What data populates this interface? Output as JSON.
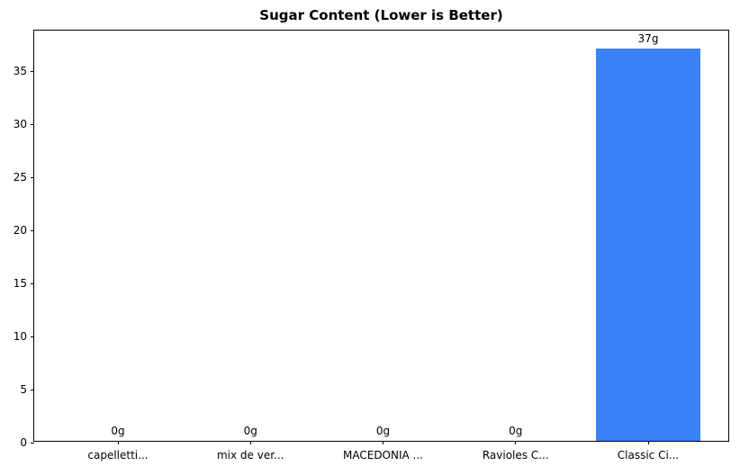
{
  "chart_data": {
    "type": "bar",
    "title": "Sugar Content (Lower is Better)",
    "categories": [
      "capelletti...",
      "mix de ver...",
      "MACEDONIA ...",
      "Ravioles C...",
      "Classic Ci..."
    ],
    "values": [
      0,
      0,
      0,
      0,
      37
    ],
    "value_labels": [
      "0g",
      "0g",
      "0g",
      "0g",
      "37g"
    ],
    "xlabel": "",
    "ylabel": "",
    "ylim": [
      0,
      38.85
    ],
    "yticks": [
      0,
      5,
      10,
      15,
      20,
      25,
      30,
      35
    ],
    "grid": false,
    "legend": null,
    "bar_color": "#3b82f6",
    "axis_color": "#000000",
    "text_color": "#000000",
    "background_color": "#ffffff"
  }
}
